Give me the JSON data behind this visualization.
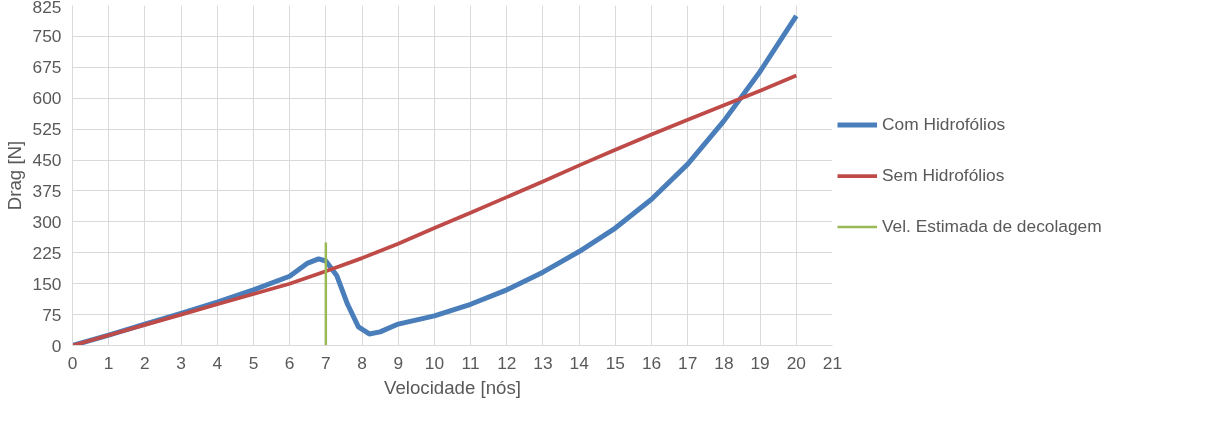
{
  "chart_data": {
    "type": "line",
    "xlabel": "Velocidade [nós]",
    "ylabel": "Drag [N]",
    "xlim": [
      0,
      21
    ],
    "xticks": [
      0,
      1,
      2,
      3,
      4,
      5,
      6,
      7,
      8,
      9,
      10,
      11,
      12,
      13,
      14,
      15,
      16,
      17,
      18,
      19,
      20,
      21
    ],
    "ylim": [
      0,
      825
    ],
    "yticks": [
      0,
      75,
      150,
      225,
      300,
      375,
      450,
      525,
      600,
      675,
      750,
      825
    ],
    "grid": true,
    "legend": "right",
    "line_style": "solid",
    "marker": "none",
    "series": [
      {
        "name": "Com Hidrofólios",
        "color": "#4a7ebb",
        "x": [
          0,
          1,
          2,
          3,
          4,
          5,
          6,
          6.5,
          6.8,
          7,
          7.3,
          7.6,
          7.9,
          8.2,
          8.5,
          9,
          10,
          11,
          12,
          13,
          14,
          15,
          16,
          17,
          18,
          19,
          20
        ],
        "values": [
          0,
          25,
          52,
          78,
          105,
          135,
          168,
          200,
          210,
          205,
          170,
          100,
          45,
          28,
          33,
          52,
          72,
          100,
          135,
          178,
          228,
          285,
          355,
          440,
          545,
          665,
          800
        ]
      },
      {
        "name": "Sem Hidrofólios",
        "color": "#be4b48",
        "x": [
          0,
          1,
          2,
          3,
          4,
          5,
          6,
          7,
          8,
          9,
          10,
          11,
          12,
          13,
          14,
          15,
          16,
          17,
          18,
          19,
          20
        ],
        "values": [
          0,
          25,
          50,
          75,
          100,
          125,
          150,
          180,
          212,
          247,
          285,
          322,
          360,
          398,
          437,
          475,
          512,
          548,
          583,
          618,
          655
        ]
      },
      {
        "name": "Vel. Estimada de decolagem",
        "color": "#98b954",
        "x": [
          7,
          7
        ],
        "values": [
          0,
          250
        ]
      }
    ]
  }
}
